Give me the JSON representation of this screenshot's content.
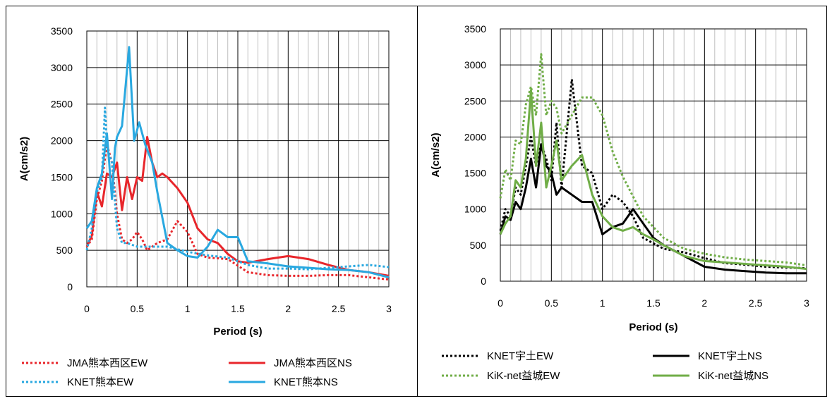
{
  "chart_data": [
    {
      "type": "line",
      "title": "",
      "xlabel": "Period (s)",
      "ylabel": "A(cm/s2)",
      "xlim": [
        0,
        3
      ],
      "ylim": [
        0,
        3500
      ],
      "xticks": [
        "0",
        "0.5",
        "1",
        "1.5",
        "2",
        "2.5",
        "3"
      ],
      "yticks": [
        "0",
        "500",
        "1000",
        "1500",
        "2000",
        "2500",
        "3000",
        "3500"
      ],
      "grid": true,
      "legend_position": "bottom",
      "series": [
        {
          "name": "JMA熊本西区EW",
          "color": "#e8262b",
          "dash": "dotted",
          "x": [
            0,
            0.05,
            0.1,
            0.15,
            0.2,
            0.25,
            0.3,
            0.35,
            0.4,
            0.45,
            0.5,
            0.55,
            0.6,
            0.7,
            0.8,
            0.9,
            1.0,
            1.1,
            1.2,
            1.4,
            1.6,
            1.8,
            2.0,
            2.2,
            2.4,
            2.6,
            2.8,
            3.0
          ],
          "y": [
            550,
            650,
            1200,
            1450,
            1950,
            1700,
            1000,
            650,
            600,
            650,
            750,
            650,
            500,
            600,
            650,
            900,
            750,
            450,
            400,
            380,
            200,
            160,
            150,
            150,
            160,
            160,
            130,
            100
          ]
        },
        {
          "name": "JMA熊本西区NS",
          "color": "#e8262b",
          "dash": "solid",
          "x": [
            0,
            0.05,
            0.1,
            0.15,
            0.2,
            0.25,
            0.3,
            0.35,
            0.4,
            0.45,
            0.5,
            0.55,
            0.6,
            0.65,
            0.7,
            0.75,
            0.8,
            0.9,
            1.0,
            1.1,
            1.2,
            1.3,
            1.4,
            1.5,
            1.6,
            1.8,
            2.0,
            2.2,
            2.4,
            2.6,
            2.8,
            3.0
          ],
          "y": [
            550,
            700,
            1300,
            1100,
            1550,
            1500,
            1700,
            1050,
            1500,
            1200,
            1500,
            1450,
            2050,
            1700,
            1500,
            1550,
            1500,
            1350,
            1150,
            800,
            650,
            600,
            450,
            350,
            330,
            380,
            420,
            380,
            300,
            230,
            200,
            150
          ]
        },
        {
          "name": "KNET熊本EW",
          "color": "#29a8e0",
          "dash": "dotted",
          "x": [
            0,
            0.05,
            0.1,
            0.15,
            0.18,
            0.2,
            0.25,
            0.3,
            0.35,
            0.4,
            0.5,
            0.6,
            0.8,
            1.0,
            1.2,
            1.4,
            1.6,
            1.8,
            2.0,
            2.2,
            2.4,
            2.6,
            2.8,
            3.0
          ],
          "y": [
            500,
            800,
            1300,
            1500,
            2450,
            1900,
            1700,
            800,
            600,
            600,
            550,
            550,
            550,
            480,
            430,
            400,
            300,
            250,
            250,
            240,
            260,
            280,
            300,
            270
          ]
        },
        {
          "name": "KNET熊本NS",
          "color": "#29a8e0",
          "dash": "solid",
          "x": [
            0,
            0.05,
            0.1,
            0.15,
            0.2,
            0.25,
            0.28,
            0.3,
            0.35,
            0.42,
            0.47,
            0.52,
            0.58,
            0.65,
            0.7,
            0.8,
            0.9,
            1.0,
            1.1,
            1.2,
            1.3,
            1.4,
            1.5,
            1.6,
            1.8,
            2.0,
            2.2,
            2.4,
            2.6,
            2.8,
            3.0
          ],
          "y": [
            800,
            900,
            1350,
            1550,
            2100,
            1200,
            1900,
            2050,
            2200,
            3280,
            2000,
            2250,
            1950,
            1700,
            1300,
            600,
            500,
            420,
            400,
            550,
            780,
            680,
            680,
            350,
            320,
            280,
            260,
            240,
            230,
            200,
            130
          ]
        }
      ]
    },
    {
      "type": "line",
      "title": "",
      "xlabel": "Period (s)",
      "ylabel": "A(cm/s2)",
      "xlim": [
        0,
        3
      ],
      "ylim": [
        0,
        3500
      ],
      "xticks": [
        "0",
        "0.5",
        "1",
        "1.5",
        "2",
        "2.5",
        "3"
      ],
      "yticks": [
        "0",
        "500",
        "1000",
        "1500",
        "2000",
        "2500",
        "3000",
        "3500"
      ],
      "grid": true,
      "legend_position": "bottom",
      "series": [
        {
          "name": "KNET宇土EW",
          "color": "#000000",
          "dash": "dotted",
          "x": [
            0,
            0.05,
            0.1,
            0.15,
            0.2,
            0.25,
            0.3,
            0.35,
            0.4,
            0.45,
            0.5,
            0.55,
            0.6,
            0.7,
            0.8,
            0.9,
            1.0,
            1.1,
            1.2,
            1.3,
            1.4,
            1.6,
            1.8,
            2.0,
            2.2,
            2.4,
            2.6,
            2.8,
            3.0
          ],
          "y": [
            700,
            1000,
            900,
            1300,
            1200,
            1600,
            2000,
            1600,
            1900,
            1700,
            1400,
            2200,
            1300,
            2800,
            1600,
            1500,
            1000,
            1200,
            1100,
            900,
            600,
            450,
            400,
            320,
            250,
            230,
            200,
            190,
            180
          ]
        },
        {
          "name": "KNET宇土NS",
          "color": "#000000",
          "dash": "solid",
          "x": [
            0,
            0.05,
            0.1,
            0.15,
            0.2,
            0.25,
            0.3,
            0.35,
            0.4,
            0.45,
            0.5,
            0.55,
            0.6,
            0.7,
            0.8,
            0.9,
            1.0,
            1.1,
            1.2,
            1.3,
            1.4,
            1.5,
            1.6,
            1.8,
            2.0,
            2.2,
            2.4,
            2.6,
            2.8,
            3.0
          ],
          "y": [
            650,
            900,
            850,
            1100,
            1000,
            1300,
            1700,
            1300,
            1900,
            1600,
            1500,
            1200,
            1300,
            1200,
            1100,
            1100,
            650,
            750,
            800,
            1000,
            800,
            600,
            500,
            350,
            200,
            160,
            140,
            120,
            110,
            110
          ]
        },
        {
          "name": "KiK-net益城EW",
          "color": "#70ad47",
          "dash": "dotted",
          "x": [
            0,
            0.05,
            0.1,
            0.15,
            0.2,
            0.25,
            0.3,
            0.35,
            0.4,
            0.45,
            0.5,
            0.55,
            0.6,
            0.7,
            0.8,
            0.9,
            1.0,
            1.1,
            1.2,
            1.4,
            1.6,
            1.8,
            2.0,
            2.2,
            2.4,
            2.6,
            2.8,
            3.0
          ],
          "y": [
            1150,
            1550,
            1400,
            1950,
            1900,
            2450,
            2700,
            2300,
            3150,
            2300,
            2500,
            2400,
            2050,
            2300,
            2550,
            2550,
            2300,
            1800,
            1450,
            900,
            600,
            450,
            380,
            330,
            300,
            280,
            260,
            220
          ]
        },
        {
          "name": "KiK-net益城NS",
          "color": "#70ad47",
          "dash": "solid",
          "x": [
            0,
            0.05,
            0.1,
            0.15,
            0.2,
            0.25,
            0.3,
            0.35,
            0.4,
            0.45,
            0.5,
            0.55,
            0.6,
            0.7,
            0.8,
            0.9,
            1.0,
            1.1,
            1.2,
            1.3,
            1.4,
            1.5,
            1.6,
            1.8,
            2.0,
            2.2,
            2.4,
            2.6,
            2.8,
            3.0
          ],
          "y": [
            650,
            800,
            900,
            1400,
            1300,
            1700,
            2650,
            1600,
            2200,
            1300,
            1600,
            1950,
            1400,
            1600,
            1750,
            1200,
            900,
            750,
            700,
            750,
            650,
            580,
            500,
            350,
            280,
            260,
            240,
            220,
            200,
            170
          ]
        }
      ]
    }
  ]
}
